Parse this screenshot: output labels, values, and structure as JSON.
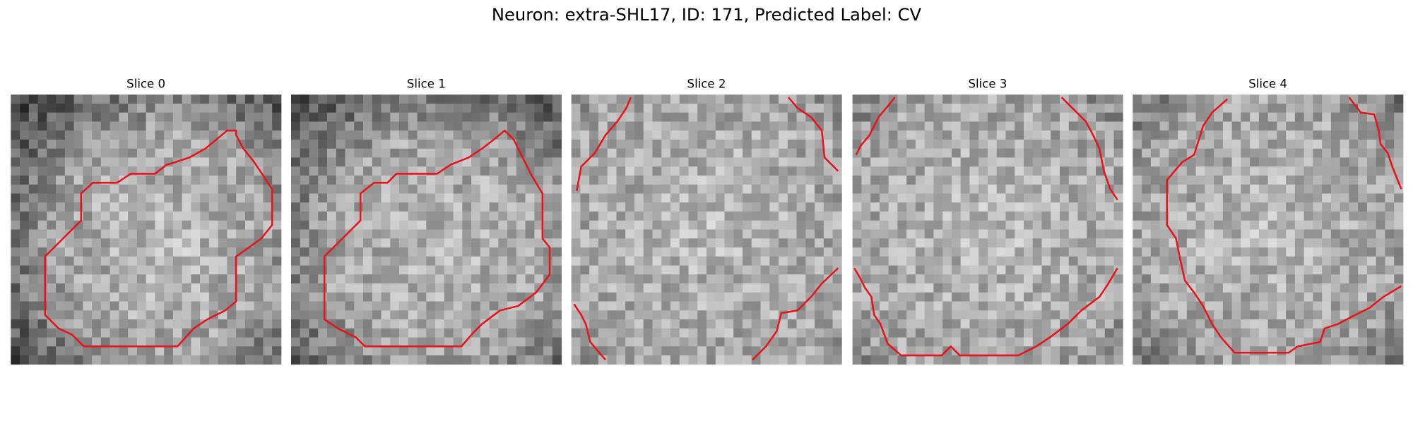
{
  "title": "Neuron: extra-SHL17, ID: 171, Predicted Label: CV",
  "panels": [
    {
      "title": "Slice 0"
    },
    {
      "title": "Slice 1"
    },
    {
      "title": "Slice 2"
    },
    {
      "title": "Slice 3"
    },
    {
      "title": "Slice 4"
    }
  ]
}
